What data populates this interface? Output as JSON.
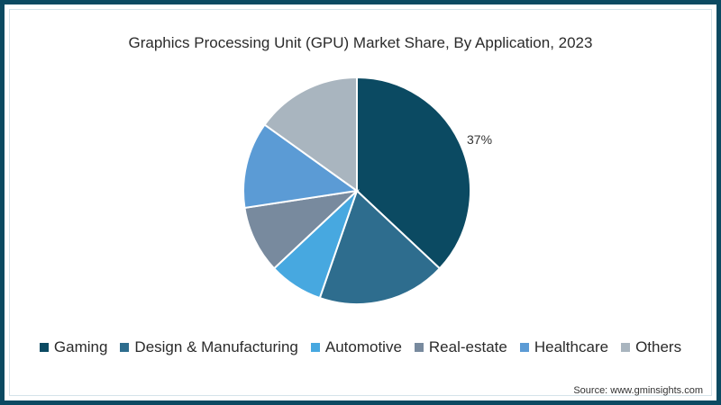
{
  "chart_data": {
    "type": "pie",
    "title": "Graphics Processing Unit (GPU) Market Share, By Application, 2023",
    "categories": [
      "Gaming",
      "Design & Manufacturing",
      "Automotive",
      "Real-estate",
      "Healthcare",
      "Others"
    ],
    "values": [
      37,
      18.3,
      7.7,
      9.6,
      12.3,
      15.1
    ],
    "colors": [
      "#0b4a62",
      "#2e6d8e",
      "#47a8e0",
      "#788a9e",
      "#5b9bd5",
      "#a9b5bf"
    ],
    "data_labels": [
      "37%",
      "",
      "",
      "",
      "",
      ""
    ],
    "legend_position": "bottom",
    "start_angle_deg": 0,
    "direction": "clockwise"
  },
  "title": "Graphics Processing Unit (GPU) Market Share, By Application, 2023",
  "label_gaming": "37%",
  "legend": [
    {
      "label": "Gaming",
      "color": "#0b4a62"
    },
    {
      "label": "Design & Manufacturing",
      "color": "#2e6d8e"
    },
    {
      "label": "Automotive",
      "color": "#47a8e0"
    },
    {
      "label": "Real-estate",
      "color": "#788a9e"
    },
    {
      "label": "Healthcare",
      "color": "#5b9bd5"
    },
    {
      "label": "Others",
      "color": "#a9b5bf"
    }
  ],
  "source": "Source: www.gminsights.com"
}
